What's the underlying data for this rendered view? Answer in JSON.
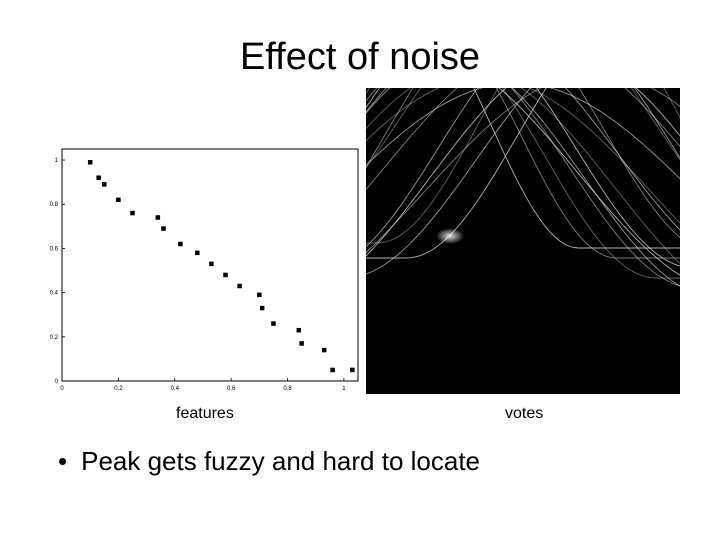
{
  "slide": {
    "title": "Effect of noise",
    "caption_left": "features",
    "caption_right": "votes",
    "bullet": "Peak gets fuzzy and hard to locate"
  },
  "chart_data": [
    {
      "type": "scatter",
      "title": "",
      "xlabel": "",
      "ylabel": "",
      "xlim": [
        0,
        1.05
      ],
      "ylim": [
        0,
        1.05
      ],
      "grid": false,
      "x_ticks": [
        "0",
        "0.2",
        "0.4",
        "0.6",
        "0.8",
        "1"
      ],
      "y_ticks": [
        "0",
        "0.2",
        "0.4",
        "0.6",
        "0.8",
        "1"
      ],
      "points": [
        {
          "x": 0.1,
          "y": 0.99
        },
        {
          "x": 0.13,
          "y": 0.92
        },
        {
          "x": 0.15,
          "y": 0.89
        },
        {
          "x": 0.2,
          "y": 0.82
        },
        {
          "x": 0.25,
          "y": 0.76
        },
        {
          "x": 0.34,
          "y": 0.74
        },
        {
          "x": 0.36,
          "y": 0.69
        },
        {
          "x": 0.42,
          "y": 0.62
        },
        {
          "x": 0.48,
          "y": 0.58
        },
        {
          "x": 0.53,
          "y": 0.53
        },
        {
          "x": 0.58,
          "y": 0.48
        },
        {
          "x": 0.63,
          "y": 0.43
        },
        {
          "x": 0.7,
          "y": 0.39
        },
        {
          "x": 0.71,
          "y": 0.33
        },
        {
          "x": 0.75,
          "y": 0.26
        },
        {
          "x": 0.84,
          "y": 0.23
        },
        {
          "x": 0.85,
          "y": 0.17
        },
        {
          "x": 0.93,
          "y": 0.14
        },
        {
          "x": 0.96,
          "y": 0.05
        },
        {
          "x": 1.03,
          "y": 0.05
        }
      ]
    },
    {
      "type": "heatmap",
      "title": "",
      "xlabel": "",
      "ylabel": "",
      "grid": false,
      "background": "#000000",
      "curve_color": "#d8d8d8"
    }
  ]
}
